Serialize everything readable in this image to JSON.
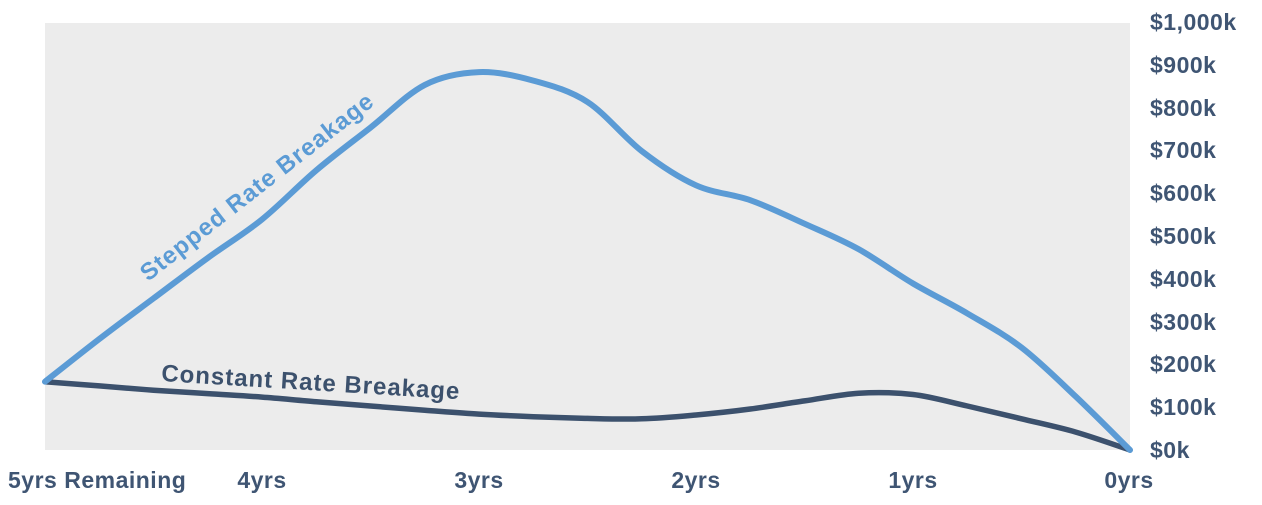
{
  "chart_data": {
    "type": "line",
    "title": "",
    "xlabel": "",
    "ylabel": "",
    "grid": false,
    "legend_position": "inline-curve-labels",
    "x_axis": {
      "unit": "years remaining",
      "direction": "left 5yrs to right 0yrs",
      "tick_years": [
        5,
        4,
        3,
        2,
        1,
        0
      ],
      "tick_labels": [
        "5yrs Remaining",
        "4yrs",
        "3yrs",
        "2yrs",
        "1yrs",
        "0yrs"
      ]
    },
    "y_axis": {
      "side": "right",
      "range_k": [
        0,
        1000
      ],
      "tick_step_k": 100,
      "tick_labels": [
        "$1,000k",
        "$900k",
        "$800k",
        "$700k",
        "$600k",
        "$500k",
        "$400k",
        "$300k",
        "$200k",
        "$100k",
        "$0k"
      ]
    },
    "series": [
      {
        "name": "Stepped Rate Breakage",
        "color": "#5b9bd5",
        "x_years_remaining": [
          5,
          4.75,
          4.5,
          4.25,
          4,
          3.75,
          3.5,
          3.25,
          3,
          2.75,
          2.5,
          2.25,
          2,
          1.75,
          1.5,
          1.25,
          1,
          0.75,
          0.5,
          0.25,
          0
        ],
        "values_k": [
          160,
          260,
          355,
          450,
          540,
          655,
          755,
          855,
          885,
          865,
          815,
          700,
          620,
          585,
          530,
          470,
          390,
          320,
          240,
          125,
          0
        ]
      },
      {
        "name": "Constant Rate Breakage",
        "color": "#3c516d",
        "x_years_remaining": [
          5,
          4.75,
          4.5,
          4.25,
          4,
          3.75,
          3.5,
          3.25,
          3,
          2.75,
          2.5,
          2.25,
          2,
          1.75,
          1.5,
          1.25,
          1,
          0.75,
          0.5,
          0.25,
          0
        ],
        "values_k": [
          160,
          150,
          140,
          132,
          124,
          113,
          103,
          93,
          84,
          78,
          74,
          73,
          82,
          96,
          115,
          133,
          130,
          103,
          73,
          42,
          0
        ]
      }
    ],
    "annotations": {
      "stepped_peak_k": 885,
      "stepped_peak_at": "3yrs",
      "both_series_start_k": 160,
      "both_series_end_k": 0
    }
  },
  "colors": {
    "plot_background": "#ececec",
    "page_background": "#ffffff",
    "axis_text": "#3f5573",
    "stepped_line": "#5b9bd5",
    "constant_line": "#3c516d"
  }
}
